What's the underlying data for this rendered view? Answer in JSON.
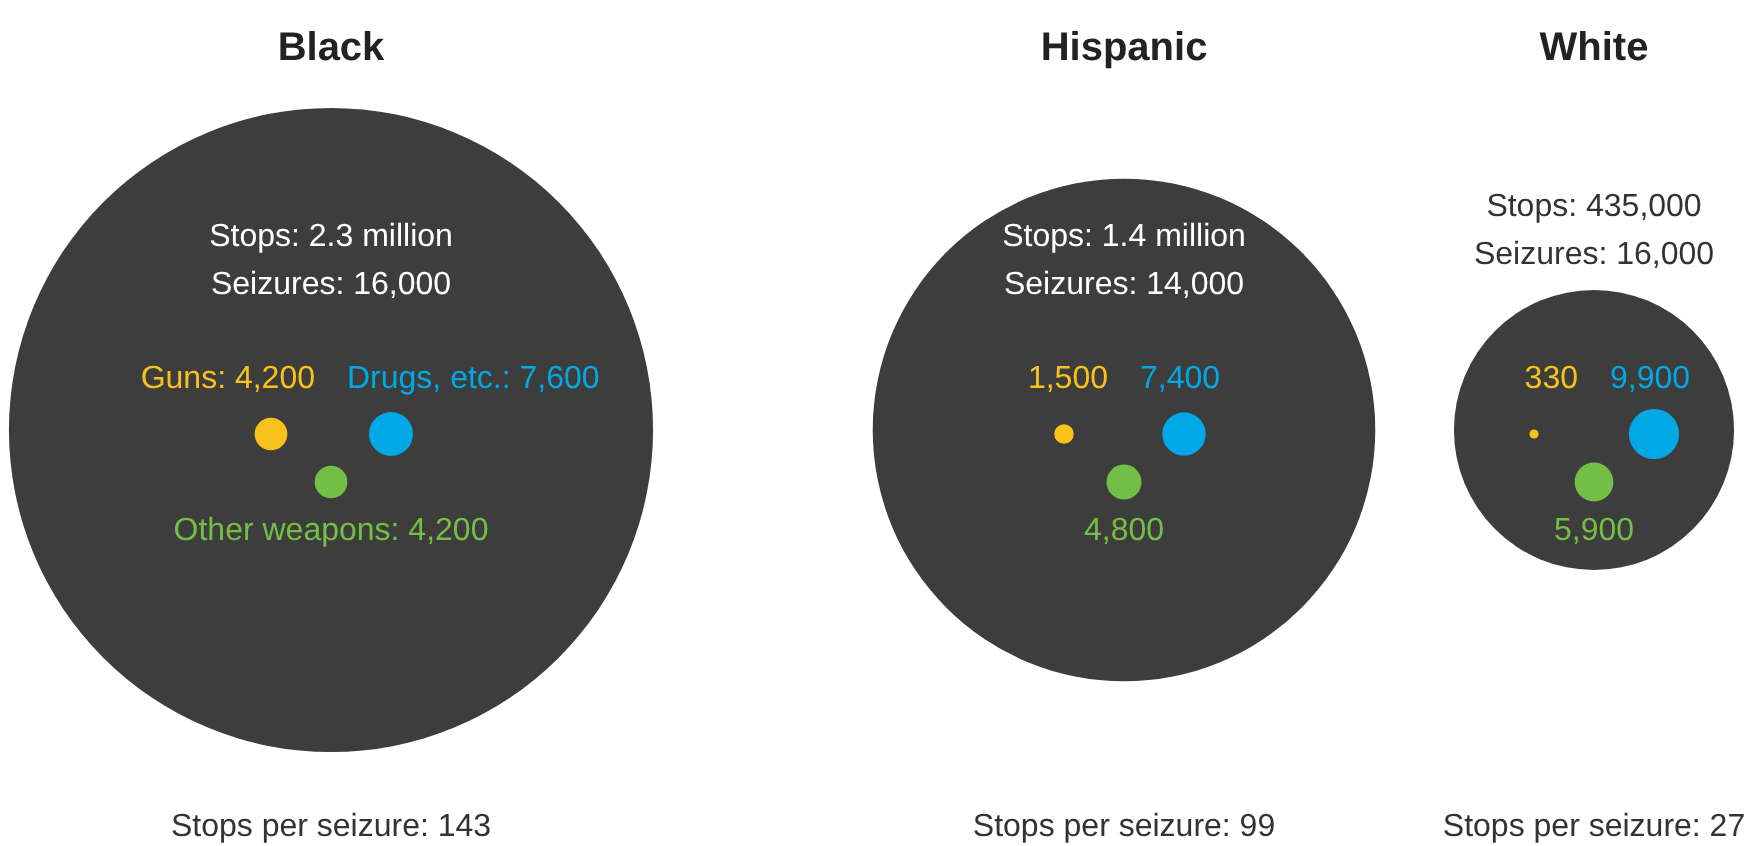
{
  "chart_data": [
    {
      "type": "other",
      "title": "Black",
      "categories": [
        null,
        null,
        null,
        null
      ],
      "values": [
        2300000,
        4200,
        7600,
        4200
      ],
      "colors": [
        "#3d3d3d",
        "#f7c21b",
        "#00a9e6",
        "#73be44"
      ],
      "value_labels": [
        "Stops: 2.3 million",
        "Guns: 4,200",
        "Drugs, etc.: 7,600",
        "Other weapons: 4,200"
      ],
      "annotations": [
        "Seizures: 16,000",
        "Stops per seizure: 143"
      ]
    },
    {
      "type": "other",
      "title": "Hispanic",
      "categories": [
        null,
        null,
        null,
        null
      ],
      "values": [
        1400000,
        1500,
        7400,
        4800
      ],
      "colors": [
        "#3d3d3d",
        "#f7c21b",
        "#00a9e6",
        "#73be44"
      ],
      "value_labels": [
        "Stops: 1.4 million",
        "1,500",
        "7,400",
        "4,800"
      ],
      "annotations": [
        "Seizures: 14,000",
        "Stops per seizure: 99"
      ]
    },
    {
      "type": "other",
      "title": "White",
      "categories": [
        null,
        null,
        null,
        null
      ],
      "values": [
        435000,
        330,
        9900,
        5900
      ],
      "colors": [
        "#3d3d3d",
        "#f7c21b",
        "#00a9e6",
        "#73be44"
      ],
      "value_labels": [
        "Stops: 435,000",
        "330",
        "9,900",
        "5,900"
      ],
      "annotations": [
        "Seizures: 16,000",
        "Stops per seizure: 27"
      ]
    }
  ]
}
